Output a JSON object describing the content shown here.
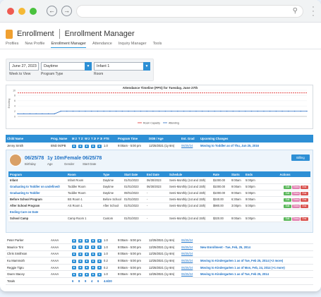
{
  "header": {
    "app": "Enrollment",
    "page": "Enrollment Manager"
  },
  "tabs": [
    "Profiles",
    "New Profile",
    "Enrollment Manager",
    "Attendance",
    "Inquiry Manager",
    "Tools"
  ],
  "filters": {
    "date": "June 27, 2023",
    "date_label": "Week to View",
    "program": "Daytime",
    "program_label": "Program Type",
    "room": "Infant 1",
    "room_label": "Room"
  },
  "chart_data": {
    "type": "line",
    "title": "Attendance Timeline (FPS) for Tuesday, June 27th",
    "ylabel": "Enrolling",
    "ylim": [
      0,
      10
    ],
    "series": [
      {
        "name": "Room Capacity",
        "color": "#e03030",
        "values": [
          9,
          9,
          9,
          9,
          9,
          9,
          9,
          9,
          9,
          9,
          9,
          9,
          9,
          9,
          9,
          9,
          9,
          9,
          9,
          9,
          9,
          9,
          9,
          9,
          9,
          9,
          9,
          9,
          9,
          9,
          9,
          9,
          9,
          9,
          9,
          9,
          9,
          9,
          9,
          9,
          9,
          9,
          9,
          9,
          9,
          9,
          9,
          9
        ]
      },
      {
        "name": "Attending",
        "color": "#2d6fc4",
        "values": [
          1,
          1,
          1,
          1,
          1,
          1,
          1,
          2,
          2,
          2,
          2,
          2,
          2,
          2,
          2,
          2,
          2,
          2,
          2,
          2,
          2,
          2,
          2,
          2,
          2,
          2,
          2,
          2,
          2,
          2,
          2,
          2,
          2,
          2,
          2,
          2,
          2,
          2,
          2,
          2,
          2,
          2,
          2,
          2,
          2,
          2,
          2,
          2
        ]
      }
    ],
    "legend": "bottom"
  },
  "columns": [
    "Child Name",
    "Prog. Name",
    "M 26",
    "T 27",
    "W 28",
    "T 29",
    "F 30",
    "FTE",
    "Program Time",
    "DOB / Age",
    "Est. Grad",
    "Upcoming Changes"
  ],
  "top_row": {
    "name": "Jenny Smith",
    "prog": "BND 06/PB",
    "fte": "1.0",
    "time": "9:00am - 5:00 pm",
    "dob": "12/25/2021 (1y 6m)",
    "grad": "06/25/24",
    "change": "Moving to Toddler as of Thu, Jun 25, 2016"
  },
  "profile": {
    "dob": "06/25/78",
    "dob_label": "Birthday",
    "age": "1y 10m",
    "age_label": "Age",
    "gender": "Female",
    "gender_label": "Gender",
    "start": "06/25/78",
    "start_label": "Start Date",
    "billing": "Billing"
  },
  "pcols": [
    "Program",
    "Room",
    "Type",
    "Start Date",
    "End Date",
    "Schedule",
    "Rate",
    "Starts",
    "Ends",
    "Actions"
  ],
  "prows": [
    {
      "program": "Infant",
      "room": "Infant Room",
      "type": "Daytime",
      "start": "01/01/2023",
      "end": "06/30/2023",
      "sched": "Semi-Monthly (1st and 15th)",
      "rate": "$1000.00",
      "starts": "9:00am",
      "ends": "5:00pm"
    },
    {
      "program": "Graduating to Toddler on undefined!",
      "room": "Toddler Room",
      "type": "Daytime",
      "start": "01/01/2023",
      "end": "06/30/2023",
      "sched": "Semi-Monthly (1st and 15th)",
      "rate": "$1000.00",
      "starts": "9:00am",
      "ends": "5:00pm"
    },
    {
      "program": "Graduating to Toddler",
      "room": "Toddler Room",
      "type": "Daytime",
      "start": "09/01/2023",
      "end": "-",
      "sched": "Semi-Monthly (1st and 15th)",
      "rate": "$1000.00",
      "starts": "9:00am",
      "ends": "5:00pm"
    },
    {
      "program": "Before School Program",
      "room": "BS Room 1",
      "type": "Before School",
      "start": "01/01/2023",
      "end": "-",
      "sched": "Semi-Monthly (1st and 15th)",
      "rate": "$340.00",
      "starts": "6:30am",
      "ends": "9:00am"
    },
    {
      "program": "After School Program",
      "room": "AS Room 1",
      "type": "After School",
      "start": "01/01/2023",
      "end": "-",
      "sched": "Semi-Monthly (1st and 15th)",
      "rate": "$980.00",
      "starts": "3:00pm",
      "ends": "5:00pm"
    },
    {
      "program": "Ending Care on Date",
      "room": "",
      "type": "",
      "start": "",
      "end": "",
      "sched": "",
      "rate": "",
      "starts": "",
      "ends": ""
    },
    {
      "program": "School Camp",
      "room": "Camp Room 1",
      "type": "Custom",
      "start": "01/01/2023",
      "end": "-",
      "sched": "Semi-Monthly (1st and 15th)",
      "rate": "$320.00",
      "starts": "9:00am",
      "ends": "5:00pm"
    }
  ],
  "actions": {
    "edit": "Edit",
    "trans": "Trans",
    "end": "End"
  },
  "rows": [
    {
      "name": "Peter Parker",
      "prog": "AAAA",
      "fte": "1.0",
      "time": "9:00am - 5:00 pm",
      "dob": "12/25/2021 (1y 6m)",
      "grad": "06/25/24",
      "change": ""
    },
    {
      "name": "Maurice Tint",
      "prog": "AAAA",
      "fte": "1.0",
      "time": "9:00am - 5:00 pm",
      "dob": "12/25/2021 (1y 6m)",
      "grad": "06/25/24",
      "change": "New Enrollment - Tue, Feb, 25, 2014"
    },
    {
      "name": "Chris Smithson",
      "prog": "AAAA",
      "fte": "1.0",
      "time": "9:00am - 5:00 pm",
      "dob": "12/25/2021 (1y 6m)",
      "grad": "06/25/24",
      "change": ""
    },
    {
      "name": "Ku Mammoth",
      "prog": "AAAA",
      "fte": "0.2",
      "time": "9:00am - 5:00 pm",
      "dob": "12/25/2021 (1y 6m)",
      "grad": "06/25/24",
      "change": "Moving to Kindergarten 1 as of Tue, Feb 25, 2014 (+2 more)"
    },
    {
      "name": "Reggie Tigru",
      "prog": "AAAA",
      "fte": "0.2",
      "time": "9:00am - 5:00 pm",
      "dob": "12/25/2021 (1y 6m)",
      "grad": "06/25/24",
      "change": "Moving to Kindergarten 1 as of Mon, Feb, 24, 2014 (+1 more)"
    },
    {
      "name": "Gwen Stacey",
      "prog": "AAAA",
      "fte": "1.0",
      "time": "9:00am - 5:00 pm",
      "dob": "12/25/2021 (1y 6m)",
      "grad": "06/25/24",
      "change": "Moving to Kindergarten 1 as of Tue, Feb 25, 2014"
    }
  ],
  "totals": {
    "label": "Totals",
    "m": "6",
    "t": "8",
    "w": "9",
    "th": "4",
    "f": "6",
    "fte": "4.6/20"
  }
}
